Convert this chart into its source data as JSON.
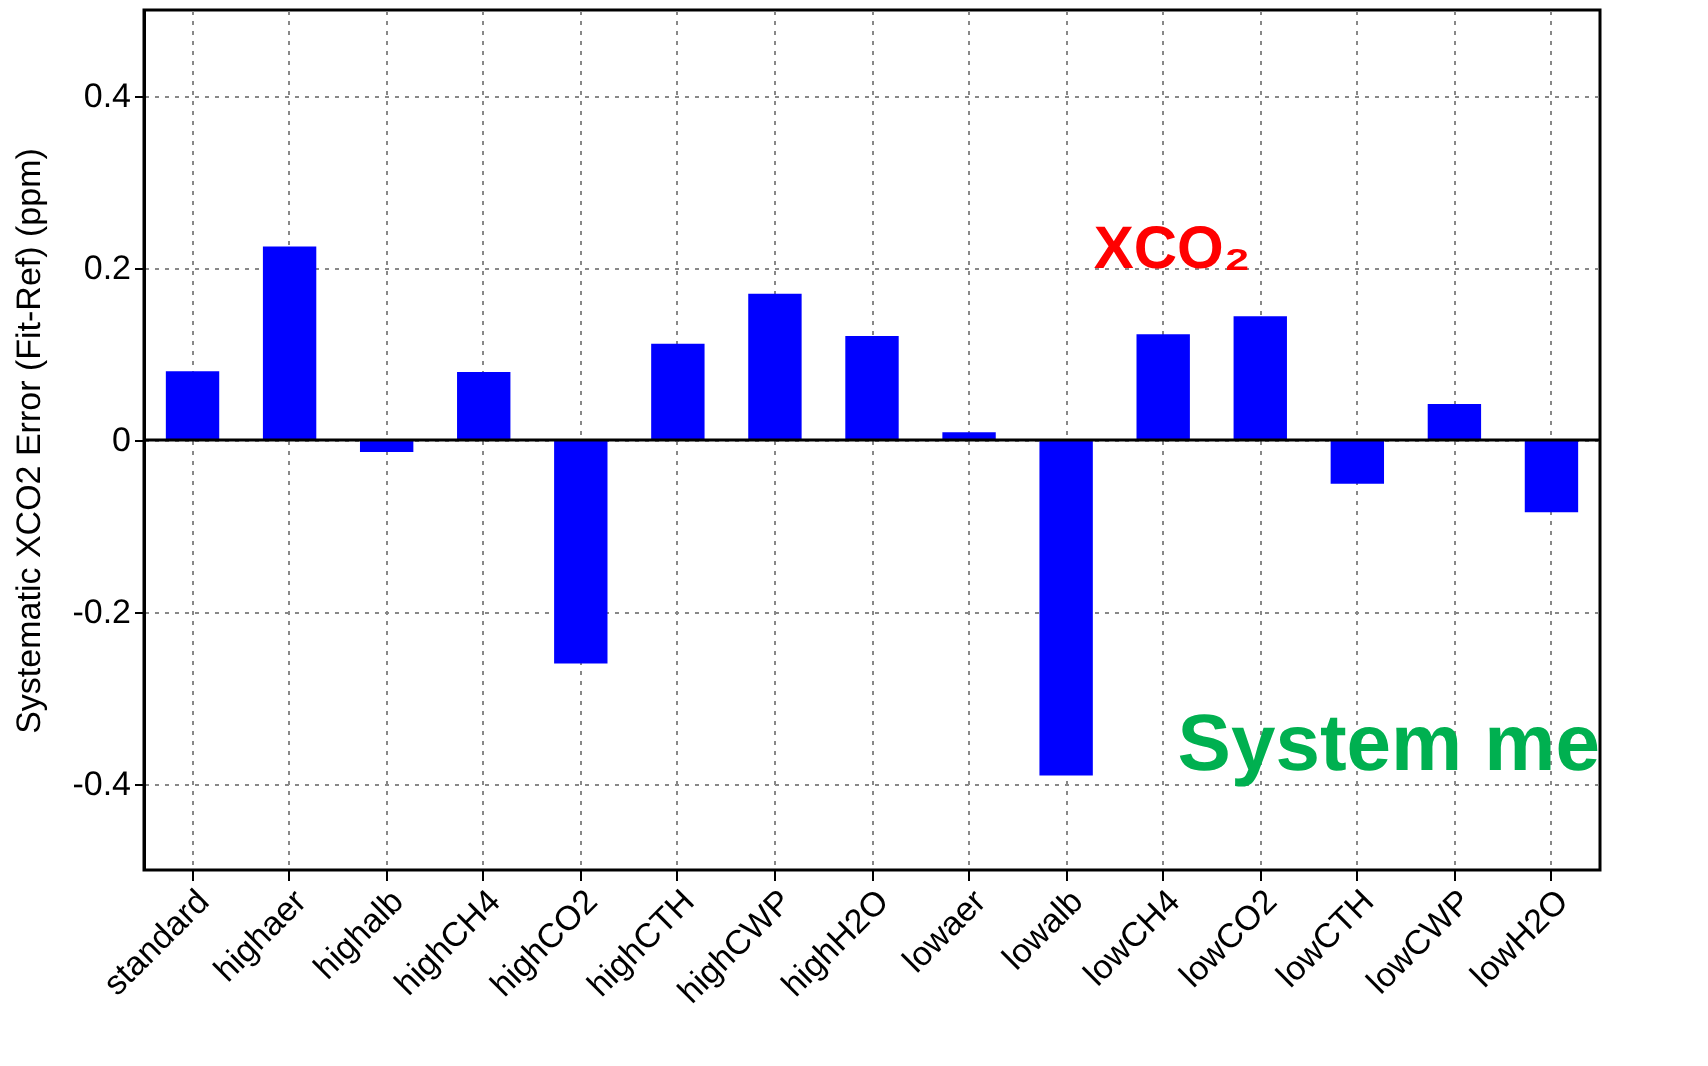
{
  "chart_data": {
    "type": "bar",
    "title": "XCO₂",
    "ylabel": "Systematic XCO2 Error (Fit-Ref) (ppm)",
    "categories": [
      "standard",
      "highaer",
      "highalb",
      "highCH4",
      "highCO2",
      "highCTH",
      "highCWP",
      "highH2O",
      "lowaer",
      "lowalb",
      "lowCH4",
      "lowCO2",
      "lowCTH",
      "lowCWP",
      "lowH2O"
    ],
    "series": [
      {
        "color": "#0000ff",
        "values": [
          0.08,
          0.225,
          -0.014,
          0.079,
          -0.26,
          0.112,
          0.17,
          0.121,
          0.009,
          -0.39,
          0.123,
          0.144,
          -0.051,
          0.042,
          -0.084
        ]
      }
    ],
    "ylim": [
      -0.5,
      0.5
    ],
    "yticks": [
      -0.4,
      -0.2,
      0,
      0.2,
      0.4
    ],
    "grid": true,
    "ref_lines": [
      {
        "axis": "y",
        "value": 0,
        "color": "#000000"
      }
    ],
    "annotations": [
      "System me"
    ]
  }
}
